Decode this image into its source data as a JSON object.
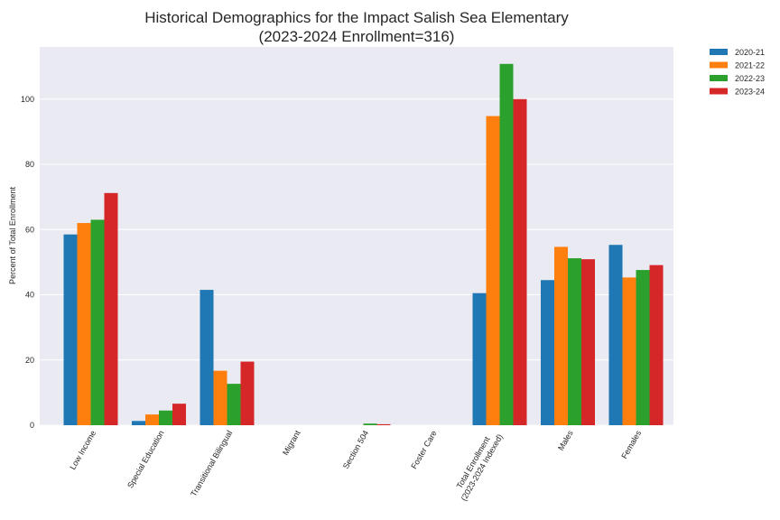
{
  "chart_data": {
    "type": "bar",
    "title_line1": "Historical Demographics for the Impact Salish Sea Elementary",
    "title_line2": "(2023-2024 Enrollment=316)",
    "xlabel": "",
    "ylabel": "Percent of Total Enrollment",
    "ylim": [
      0,
      116
    ],
    "yticks": [
      0,
      20,
      40,
      60,
      80,
      100
    ],
    "grid": true,
    "legend_position": "outside-top-right",
    "categories": [
      [
        "Low Income"
      ],
      [
        "Special Education"
      ],
      [
        "Transitional Bilingual"
      ],
      [
        "Migrant"
      ],
      [
        "Section 504"
      ],
      [
        "Foster Care"
      ],
      [
        "Total Enrollment",
        "(2023-2024 Indexed)"
      ],
      [
        "Males"
      ],
      [
        "Females"
      ]
    ],
    "series": [
      {
        "name": "2020-21",
        "color": "#1f77b4",
        "values": [
          58.5,
          1.3,
          41.5,
          0,
          0,
          0,
          40.5,
          44.5,
          55.3
        ]
      },
      {
        "name": "2021-22",
        "color": "#ff7f0e",
        "values": [
          62.0,
          3.3,
          16.7,
          0,
          0,
          0,
          94.8,
          54.7,
          45.3
        ]
      },
      {
        "name": "2022-23",
        "color": "#2ca02c",
        "values": [
          63.0,
          4.5,
          12.7,
          0,
          0.5,
          0,
          110.8,
          51.2,
          47.6
        ]
      },
      {
        "name": "2023-24",
        "color": "#d62728",
        "values": [
          71.2,
          6.6,
          19.5,
          0,
          0.3,
          0,
          100.0,
          50.9,
          49.1
        ]
      }
    ]
  }
}
